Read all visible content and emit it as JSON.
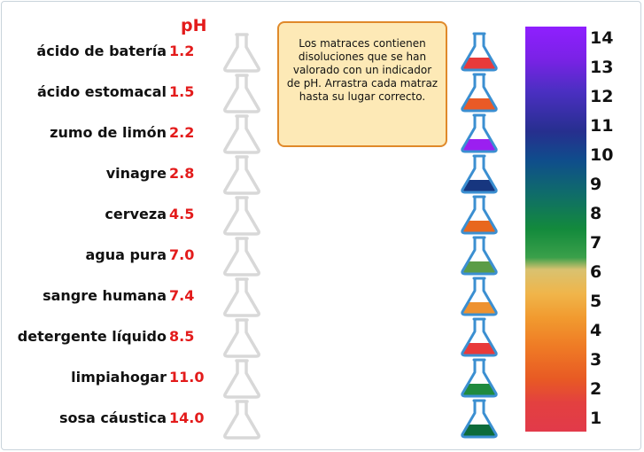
{
  "header": {
    "ph_label": "pH"
  },
  "substances": [
    {
      "name": "ácido de batería",
      "ph": "1.2"
    },
    {
      "name": "ácido estomacal",
      "ph": "1.5"
    },
    {
      "name": "zumo de limón",
      "ph": "2.2"
    },
    {
      "name": "vinagre",
      "ph": "2.8"
    },
    {
      "name": "cerveza",
      "ph": "4.5"
    },
    {
      "name": "agua pura",
      "ph": "7.0"
    },
    {
      "name": "sangre humana",
      "ph": "7.4"
    },
    {
      "name": "detergente líquido",
      "ph": "8.5"
    },
    {
      "name": "limpiahogar",
      "ph": "11.0"
    },
    {
      "name": "sosa cáustica",
      "ph": "14.0"
    }
  ],
  "instructions": "Los matraces contienen disoluciones que se han valorado con un indicador de pH. Arrastra cada matraz hasta su lugar correcto.",
  "flasks": [
    {
      "color": "#e83a3a"
    },
    {
      "color": "#ea5a26"
    },
    {
      "color": "#9b1ff0"
    },
    {
      "color": "#17367f"
    },
    {
      "color": "#e8671e"
    },
    {
      "color": "#5b9c47"
    },
    {
      "color": "#ee9230"
    },
    {
      "color": "#e83a3a"
    },
    {
      "color": "#1f8a3e"
    },
    {
      "color": "#0d6b3a"
    }
  ],
  "scale": {
    "ticks": [
      "14",
      "13",
      "12",
      "11",
      "10",
      "9",
      "8",
      "7",
      "6",
      "5",
      "4",
      "3",
      "2",
      "1"
    ]
  },
  "colors": {
    "ph_red": "#e31b1b",
    "note_bg": "#fde9b6",
    "note_border": "#e0892a",
    "flask_outline": "#3b8fd1",
    "slot_gray": "#d8d8d8"
  }
}
